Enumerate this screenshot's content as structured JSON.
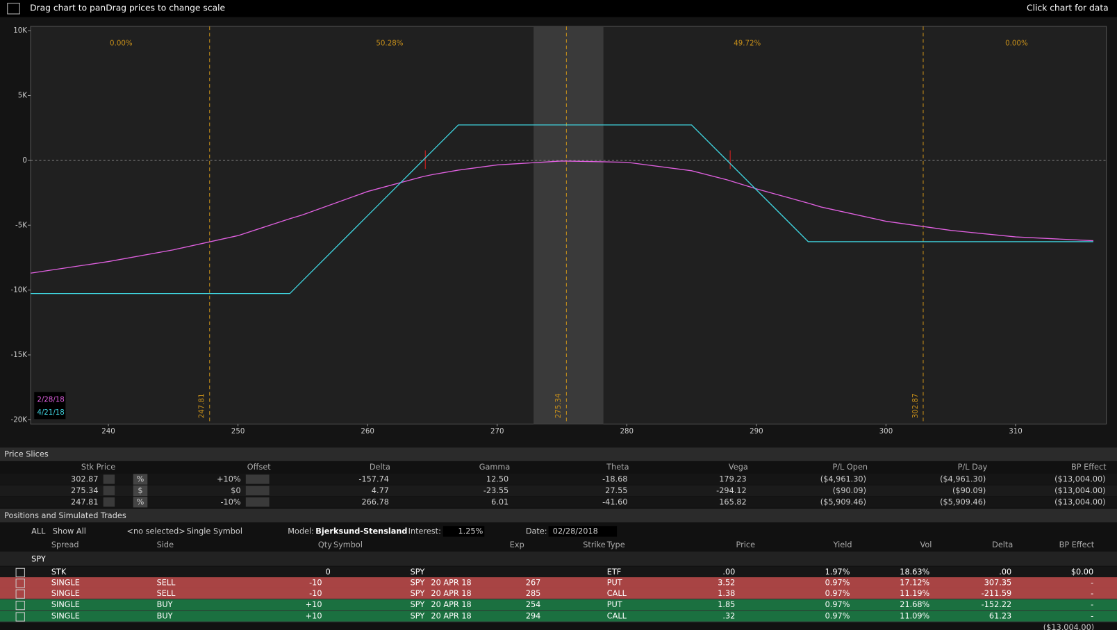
{
  "header": {
    "hint": "Drag chart to panDrag prices to change scale",
    "action": "Click chart for data"
  },
  "chart_data": {
    "type": "line",
    "x": [
      234,
      240,
      245,
      250,
      254,
      255,
      260,
      264.27,
      265,
      267,
      270,
      275,
      280,
      285,
      287.73,
      290,
      294,
      295,
      300,
      305,
      310,
      316
    ],
    "series": [
      {
        "name": "2/28/18",
        "color": "#e060e0",
        "values": [
          -8700,
          -7800,
          -6900,
          -5800,
          -4500,
          -4200,
          -2400,
          -1250,
          -1100,
          -750,
          -350,
          -50,
          -150,
          -800,
          -1500,
          -2200,
          -3300,
          -3600,
          -4700,
          -5400,
          -5900,
          -6200
        ]
      },
      {
        "name": "4/21/18",
        "color": "#3fd3de",
        "values": [
          -10270,
          -10270,
          -10270,
          -10270,
          -10270,
          -9270,
          -4270,
          0,
          730,
          2730,
          2730,
          2730,
          2730,
          2730,
          0,
          -2270,
          -6270,
          -6270,
          -6270,
          -6270,
          -6270,
          -6270
        ]
      }
    ],
    "xlim": [
      234,
      317
    ],
    "ylim": [
      -20330,
      10330
    ],
    "xticks": [
      240,
      250,
      260,
      270,
      280,
      290,
      300,
      310
    ],
    "yticks": [
      {
        "value": 10000,
        "label": "10K"
      },
      {
        "value": 5000,
        "label": "5K"
      },
      0,
      {
        "value": -5000,
        "label": "-5K"
      },
      {
        "value": -10000,
        "label": "-10K"
      },
      {
        "value": -15000,
        "label": "-15K"
      },
      {
        "value": -20000,
        "label": "-20K"
      }
    ],
    "price_lines": [
      247.81,
      275.34,
      302.87
    ],
    "probabilities": [
      "0.00%",
      "50.28%",
      "49.72%",
      "0.00%"
    ]
  },
  "price_slices": {
    "title": "Price Slices",
    "columns": [
      "Stk Price",
      "Offset",
      "Delta",
      "Gamma",
      "Theta",
      "Vega",
      "P/L Open",
      "P/L Day",
      "BP Effect"
    ],
    "rows": [
      [
        "302.87",
        "%",
        "+10%",
        "-157.74",
        "12.50",
        "-18.68",
        "179.23",
        "($4,961.30)",
        "($4,961.30)",
        "($13,004.00)"
      ],
      [
        "275.34",
        "$",
        "$0",
        "4.77",
        "-23.55",
        "27.55",
        "-294.12",
        "($90.09)",
        "($90.09)",
        "($13,004.00)"
      ],
      [
        "247.81",
        "%",
        "-10%",
        "266.78",
        "6.01",
        "-41.60",
        "165.82",
        "($5,909.46)",
        "($5,909.46)",
        "($13,004.00)"
      ]
    ]
  },
  "positions": {
    "title": "Positions and Simulated Trades",
    "toolbar": {
      "all": "ALL",
      "filter": "Show All",
      "selection": "<no selected>",
      "mode": "Single Symbol",
      "model_label": "Model:",
      "model": "Bjerksund-Stensland",
      "interest_label": "Interest:",
      "interest": "1.25%",
      "date_label": "Date:",
      "date": "02/28/2018"
    },
    "columns": {
      "spread": "Spread",
      "side": "Side",
      "qty": "Qty",
      "symbol": "Symbol",
      "exp": "Exp",
      "strike": "Strike",
      "type": "Type",
      "price": "Price",
      "yield": "Yield",
      "vol": "Vol",
      "delta": "Delta",
      "bp": "BP Effect"
    },
    "group": "SPY",
    "rows": [
      {
        "spread": "STK",
        "qty": "0",
        "symbol": "SPY",
        "type": "ETF",
        "price": ".00",
        "yield": "1.97%",
        "vol": "18.63%",
        "delta": ".00",
        "bp": "$0.00"
      },
      {
        "spread": "SINGLE",
        "side": "SELL",
        "qty": "-10",
        "symbol": "SPY",
        "exp": "20 APR 18",
        "strike": "267",
        "type": "PUT",
        "price": "3.52",
        "yield": "0.97%",
        "vol": "17.12%",
        "delta": "307.35",
        "bp": "-"
      },
      {
        "spread": "SINGLE",
        "side": "SELL",
        "qty": "-10",
        "symbol": "SPY",
        "exp": "20 APR 18",
        "strike": "285",
        "type": "CALL",
        "price": "1.38",
        "yield": "0.97%",
        "vol": "11.19%",
        "delta": "-211.59",
        "bp": "-"
      },
      {
        "spread": "SINGLE",
        "side": "BUY",
        "qty": "+10",
        "symbol": "SPY",
        "exp": "20 APR 18",
        "strike": "254",
        "type": "PUT",
        "price": "1.85",
        "yield": "0.97%",
        "vol": "21.68%",
        "delta": "-152.22",
        "bp": "-"
      },
      {
        "spread": "SINGLE",
        "side": "BUY",
        "qty": "+10",
        "symbol": "SPY",
        "exp": "20 APR 18",
        "strike": "294",
        "type": "CALL",
        "price": ".32",
        "yield": "0.97%",
        "vol": "11.09%",
        "delta": "61.23",
        "bp": "-"
      }
    ],
    "total": "($13,004.00)"
  }
}
